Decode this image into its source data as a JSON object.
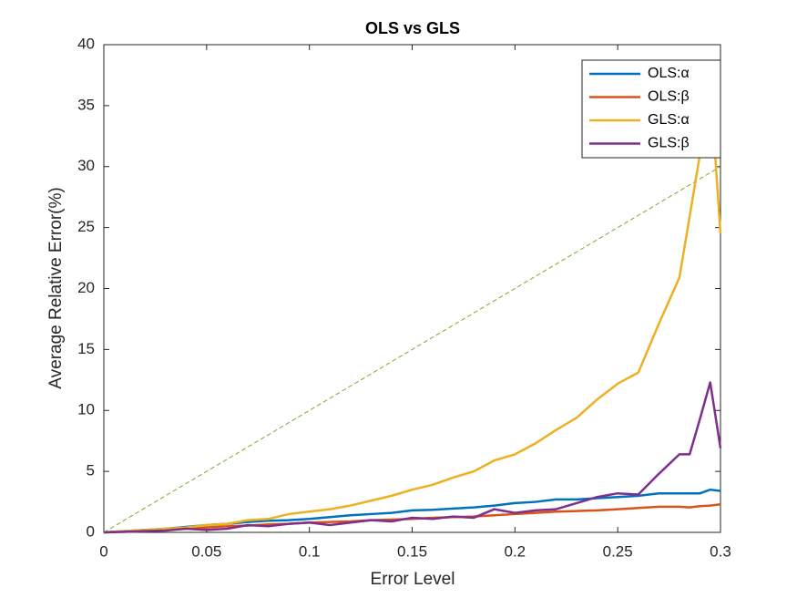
{
  "chart_data": {
    "type": "line",
    "title": "OLS vs GLS",
    "x_label": "Error Level",
    "y_label": "Average Relative Error(%)",
    "x": [
      0,
      0.01,
      0.02,
      0.03,
      0.04,
      0.05,
      0.06,
      0.07,
      0.08,
      0.09,
      0.1,
      0.11,
      0.12,
      0.13,
      0.14,
      0.15,
      0.16,
      0.17,
      0.18,
      0.19,
      0.2,
      0.21,
      0.22,
      0.23,
      0.24,
      0.25,
      0.26,
      0.27,
      0.28,
      0.285,
      0.29,
      0.295,
      0.3
    ],
    "series": [
      {
        "name": "OLS:α",
        "color": "#0072bd",
        "values": [
          0,
          0.1,
          0.2,
          0.3,
          0.45,
          0.6,
          0.7,
          0.85,
          0.95,
          1.0,
          1.1,
          1.25,
          1.4,
          1.5,
          1.6,
          1.8,
          1.85,
          1.95,
          2.05,
          2.2,
          2.4,
          2.5,
          2.7,
          2.7,
          2.8,
          2.9,
          3.0,
          3.2,
          3.2,
          3.2,
          3.2,
          3.5,
          3.4
        ]
      },
      {
        "name": "OLS:β",
        "color": "#d95319",
        "values": [
          0,
          0.05,
          0.1,
          0.2,
          0.3,
          0.4,
          0.5,
          0.55,
          0.65,
          0.7,
          0.8,
          0.85,
          0.9,
          1.0,
          1.05,
          1.1,
          1.2,
          1.25,
          1.3,
          1.4,
          1.5,
          1.6,
          1.7,
          1.75,
          1.8,
          1.9,
          2.0,
          2.1,
          2.1,
          2.05,
          2.15,
          2.2,
          2.3
        ]
      },
      {
        "name": "GLS:α",
        "color": "#edb120",
        "values": [
          0,
          0.1,
          0.2,
          0.3,
          0.4,
          0.6,
          0.7,
          1.0,
          1.1,
          1.5,
          1.7,
          1.9,
          2.2,
          2.6,
          3.0,
          3.5,
          3.9,
          4.5,
          5.0,
          5.9,
          6.4,
          7.3,
          8.4,
          9.4,
          10.9,
          12.2,
          13.1,
          17.1,
          20.9,
          25.9,
          31,
          36.9,
          24.5
        ]
      },
      {
        "name": "GLS:β",
        "color": "#7e2f8e",
        "values": [
          0,
          0.05,
          0.1,
          0.15,
          0.3,
          0.2,
          0.3,
          0.6,
          0.5,
          0.7,
          0.8,
          0.6,
          0.8,
          1.0,
          0.9,
          1.2,
          1.1,
          1.3,
          1.2,
          1.9,
          1.6,
          1.8,
          1.9,
          2.4,
          2.9,
          3.2,
          3.1,
          4.8,
          6.4,
          6.4,
          9.3,
          12.3,
          6.9
        ]
      }
    ],
    "reference_line": {
      "x": [
        0,
        0.3
      ],
      "y": [
        0,
        30
      ],
      "color": "#77ac30",
      "dashed": true
    },
    "xlim": [
      0,
      0.3
    ],
    "xticks": [
      0,
      0.05,
      0.1,
      0.15,
      0.2,
      0.25,
      0.3
    ],
    "ylim": [
      0,
      40
    ],
    "yticks": [
      0,
      5,
      10,
      15,
      20,
      25,
      30,
      35,
      40
    ],
    "legend": "upper right"
  }
}
